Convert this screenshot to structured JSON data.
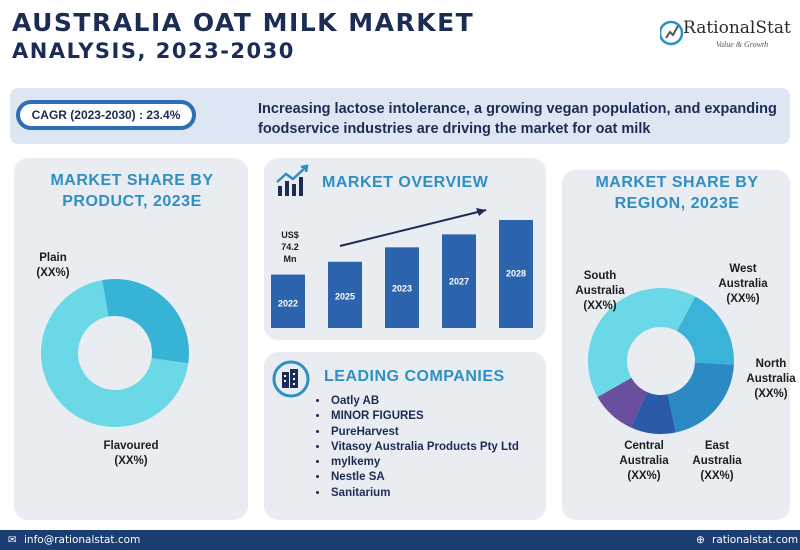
{
  "header": {
    "title_line1": "AUSTRALIA OAT MILK MARKET",
    "title_line2": "ANALYSIS, 2023-2030",
    "logo_name": "RationalStat",
    "logo_tagline": "Value & Growth"
  },
  "banner": {
    "cagr": "CAGR (2023-2030) : 23.4%",
    "text": "Increasing lactose intolerance, a growing vegan population, and expanding foodservice industries are driving the market for oat milk"
  },
  "colors": {
    "navy": "#1b2c55",
    "accent": "#2f8fc4",
    "bar": "#2b63ad",
    "panel": "#e9edf2"
  },
  "product_panel": {
    "title": "MARKET SHARE BY PRODUCT, 2023E"
  },
  "overview_panel": {
    "title": "MARKET OVERVIEW",
    "icon": "rising-chart-icon"
  },
  "companies_panel": {
    "title": "LEADING COMPANIES",
    "icon": "buildings-icon",
    "items": [
      "Oatly AB",
      "MINOR FIGURES",
      "PureHarvest",
      "Vitasoy Australia Products Pty Ltd",
      "mylkemy",
      "Nestle SA",
      "Sanitarium"
    ]
  },
  "region_panel": {
    "title": "MARKET SHARE BY REGION, 2023E"
  },
  "footer": {
    "email": "info@rationalstat.com",
    "website": "rationalstat.com"
  },
  "chart_data": [
    {
      "type": "pie",
      "title": "MARKET SHARE BY PRODUCT, 2023E",
      "donut": true,
      "slices": [
        {
          "name": "Plain",
          "label": "(XX%)",
          "value": 70,
          "color": "#6ad8e6"
        },
        {
          "name": "Flavoured",
          "label": "(XX%)",
          "value": 30,
          "color": "#37b3d6"
        }
      ]
    },
    {
      "type": "bar",
      "title": "MARKET OVERVIEW",
      "categories": [
        "2022",
        "2025",
        "2023",
        "2027",
        "2028"
      ],
      "values": [
        74.2,
        92,
        112,
        130,
        150
      ],
      "value_annotation": "US$ 74.2 Mn",
      "trend_arrow": true,
      "color": "#2b63ad"
    },
    {
      "type": "pie",
      "title": "MARKET SHARE BY REGION, 2023E",
      "donut": true,
      "slices": [
        {
          "name": "West Australia",
          "label": "(XX%)",
          "value": 18,
          "color": "#3ab3d8"
        },
        {
          "name": "North Australia",
          "label": "(XX%)",
          "value": 21,
          "color": "#2b8ac3"
        },
        {
          "name": "East Australia",
          "label": "(XX%)",
          "value": 10,
          "color": "#2a5aa8"
        },
        {
          "name": "Central Australia",
          "label": "(XX%)",
          "value": 10,
          "color": "#6a4f9f"
        },
        {
          "name": "South Australia",
          "label": "(XX%)",
          "value": 41,
          "color": "#6ad8e6"
        }
      ]
    }
  ]
}
